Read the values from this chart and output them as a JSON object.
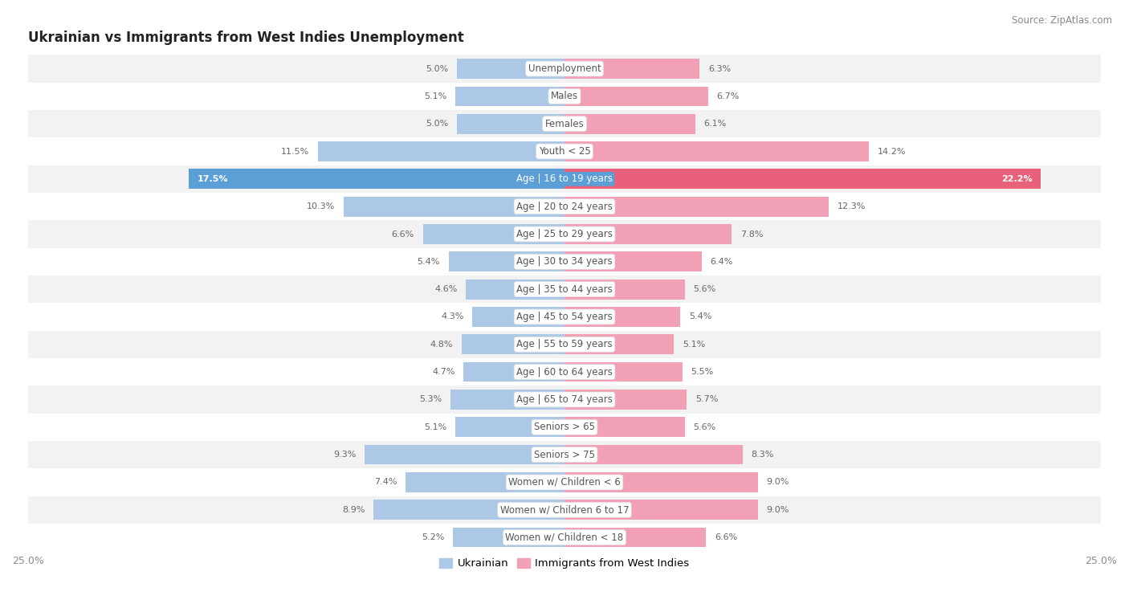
{
  "title": "Ukrainian vs Immigrants from West Indies Unemployment",
  "source": "Source: ZipAtlas.com",
  "categories": [
    "Unemployment",
    "Males",
    "Females",
    "Youth < 25",
    "Age | 16 to 19 years",
    "Age | 20 to 24 years",
    "Age | 25 to 29 years",
    "Age | 30 to 34 years",
    "Age | 35 to 44 years",
    "Age | 45 to 54 years",
    "Age | 55 to 59 years",
    "Age | 60 to 64 years",
    "Age | 65 to 74 years",
    "Seniors > 65",
    "Seniors > 75",
    "Women w/ Children < 6",
    "Women w/ Children 6 to 17",
    "Women w/ Children < 18"
  ],
  "ukrainian": [
    5.0,
    5.1,
    5.0,
    11.5,
    17.5,
    10.3,
    6.6,
    5.4,
    4.6,
    4.3,
    4.8,
    4.7,
    5.3,
    5.1,
    9.3,
    7.4,
    8.9,
    5.2
  ],
  "west_indies": [
    6.3,
    6.7,
    6.1,
    14.2,
    22.2,
    12.3,
    7.8,
    6.4,
    5.6,
    5.4,
    5.1,
    5.5,
    5.7,
    5.6,
    8.3,
    9.0,
    9.0,
    6.6
  ],
  "ukrainian_color": "#adc8e6",
  "west_indies_color": "#f2a0b5",
  "highlight_ukrainian_color": "#5b9fd6",
  "highlight_west_indies_color": "#e8607a",
  "bar_height": 0.72,
  "row_bg_even": "#f2f2f2",
  "row_bg_odd": "#ffffff",
  "axis_limit": 25.0,
  "legend_ukrainian": "Ukrainian",
  "legend_west_indies": "Immigrants from West Indies",
  "label_fontsize": 8.5,
  "value_fontsize": 8.0,
  "title_fontsize": 12
}
